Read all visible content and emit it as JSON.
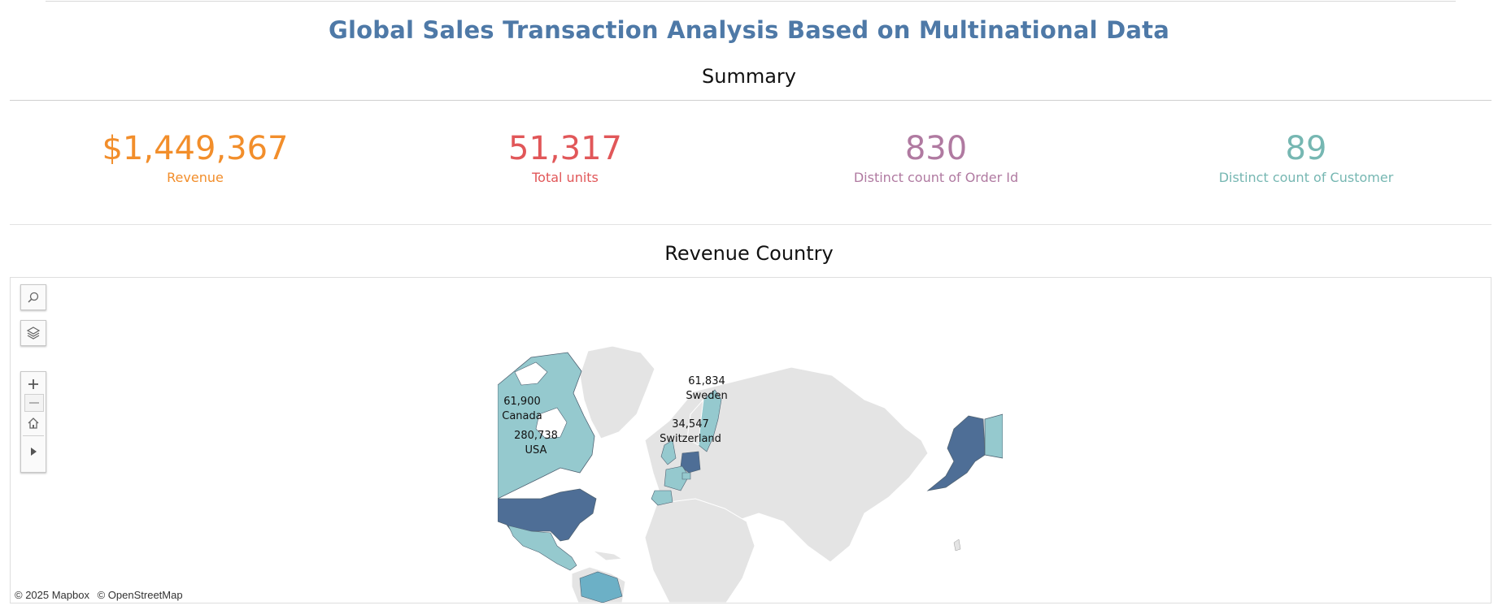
{
  "header": {
    "title": "Global Sales Transaction Analysis Based on Multinational Data"
  },
  "summary": {
    "title": "Summary",
    "kpis": [
      {
        "value": "$1,449,367",
        "label": "Revenue",
        "color": "#f28e2b"
      },
      {
        "value": "51,317",
        "label": "Total units",
        "color": "#e15759"
      },
      {
        "value": "830",
        "label": "Distinct count of Order Id",
        "color": "#b07aa1"
      },
      {
        "value": "89",
        "label": "Distinct count of Customer",
        "color": "#76b7b2"
      }
    ]
  },
  "map": {
    "title": "Revenue Country",
    "controls": {
      "search_icon": "magnifier-icon",
      "layers_icon": "layers-icon",
      "zoom_in_icon": "plus-icon",
      "zoom_out_icon": "minus-icon",
      "home_icon": "home-icon",
      "play_icon": "play-triangle-icon"
    },
    "labels": [
      {
        "value": "61,900",
        "country": "Canada"
      },
      {
        "value": "280,738",
        "country": "USA"
      },
      {
        "value": "61,834",
        "country": "Sweden"
      },
      {
        "value": "34,547",
        "country": "Switzerland"
      }
    ],
    "colors": {
      "high": "#4e6e96",
      "mid": "#95c9ce",
      "low": "#6cb0c6",
      "no_data": "#e4e4e4"
    },
    "attribution": [
      "© 2025 Mapbox",
      "© OpenStreetMap"
    ]
  }
}
